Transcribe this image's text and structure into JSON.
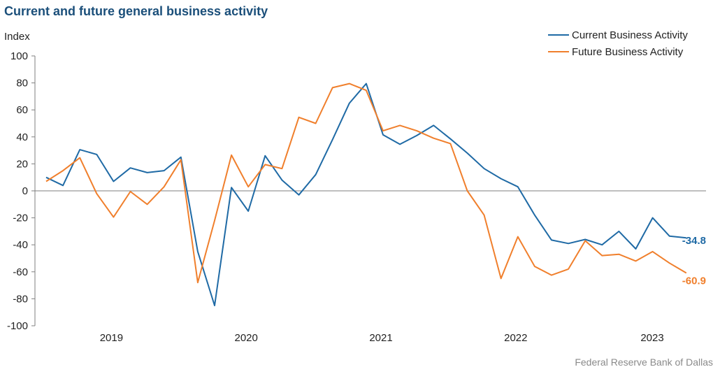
{
  "title": "Current and future general business activity",
  "source": "Federal Reserve Bank of Dallas",
  "chart_data": {
    "type": "line",
    "ylabel": "Index",
    "ylim": [
      -100,
      100
    ],
    "yticks": [
      100,
      80,
      60,
      40,
      20,
      0,
      -20,
      -40,
      -60,
      -80,
      -100
    ],
    "xtick_labels": [
      "2019",
      "2020",
      "2021",
      "2022",
      "2023"
    ],
    "legend_position": "top-right",
    "series": [
      {
        "name": "Current Business Activity",
        "color": "#1f6aa5",
        "end_label": "-34.8",
        "values": [
          10,
          4,
          30.5,
          27,
          7,
          17,
          13.5,
          15,
          25,
          -45,
          -85,
          2.5,
          -15,
          26,
          8,
          -3,
          12,
          38,
          65,
          79.5,
          41.5,
          34.5,
          41,
          48.5,
          38.5,
          28,
          16.5,
          9,
          3,
          -18,
          -36.5,
          -39,
          -36,
          -40,
          -30,
          -43,
          -20,
          -33.5,
          -34.8
        ]
      },
      {
        "name": "Future Business Activity",
        "color": "#f07f2c",
        "end_label": "-60.9",
        "values": [
          7,
          15,
          24.5,
          -2,
          -19.5,
          -0.5,
          -10,
          3,
          23,
          -68,
          -22,
          26.5,
          3,
          19.5,
          16.5,
          54.5,
          50,
          76.5,
          79.5,
          74.5,
          44.5,
          48.5,
          44.5,
          39,
          35,
          0,
          -18,
          -65,
          -34,
          -56,
          -62.5,
          -58,
          -37,
          -48,
          -47,
          -52,
          -45,
          -53.5,
          -60.9
        ]
      }
    ]
  }
}
